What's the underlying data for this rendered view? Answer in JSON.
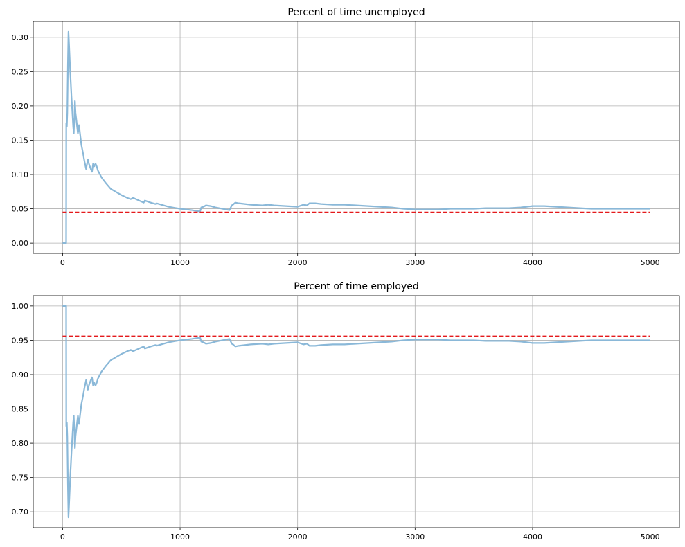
{
  "chart_data": [
    {
      "type": "line",
      "title": "Percent of time unemployed",
      "xlabel": "",
      "ylabel": "",
      "xlim": [
        -250,
        5250
      ],
      "ylim": [
        -0.015,
        0.323
      ],
      "xticks": [
        0,
        1000,
        2000,
        3000,
        4000,
        5000
      ],
      "xtick_labels": [
        "0",
        "1000",
        "2000",
        "3000",
        "4000",
        "5000"
      ],
      "yticks": [
        0.0,
        0.05,
        0.1,
        0.15,
        0.2,
        0.25,
        0.3
      ],
      "ytick_labels": [
        "0.00",
        "0.05",
        "0.10",
        "0.15",
        "0.20",
        "0.25",
        "0.30"
      ],
      "grid": true,
      "series": [
        {
          "color": "#8ab8d8",
          "style": "solid",
          "x": [
            0,
            30,
            31,
            35,
            36,
            40,
            45,
            50,
            55,
            65,
            75,
            90,
            95,
            105,
            110,
            120,
            130,
            140,
            150,
            160,
            175,
            185,
            200,
            215,
            225,
            240,
            250,
            260,
            270,
            280,
            290,
            300,
            330,
            370,
            410,
            460,
            500,
            550,
            580,
            600,
            650,
            690,
            700,
            750,
            790,
            800,
            900,
            1000,
            1100,
            1170,
            1180,
            1200,
            1220,
            1260,
            1300,
            1420,
            1440,
            1450,
            1470,
            1500,
            1600,
            1700,
            1750,
            1800,
            1900,
            2000,
            2050,
            2080,
            2100,
            2150,
            2200,
            2300,
            2400,
            2500,
            2600,
            2700,
            2800,
            2900,
            3000,
            3100,
            3200,
            3300,
            3400,
            3500,
            3600,
            3700,
            3800,
            3900,
            3950,
            4000,
            4100,
            4200,
            4300,
            4400,
            4500,
            4600,
            4700,
            4800,
            4900,
            5000
          ],
          "y": [
            0.0,
            0.0,
            0.175,
            0.17,
            0.17,
            0.19,
            0.26,
            0.308,
            0.29,
            0.25,
            0.215,
            0.17,
            0.16,
            0.207,
            0.19,
            0.175,
            0.16,
            0.172,
            0.157,
            0.143,
            0.13,
            0.12,
            0.108,
            0.122,
            0.115,
            0.108,
            0.104,
            0.116,
            0.112,
            0.116,
            0.112,
            0.106,
            0.096,
            0.087,
            0.079,
            0.074,
            0.07,
            0.066,
            0.064,
            0.066,
            0.062,
            0.059,
            0.062,
            0.059,
            0.057,
            0.058,
            0.053,
            0.05,
            0.048,
            0.046,
            0.052,
            0.053,
            0.055,
            0.054,
            0.052,
            0.048,
            0.055,
            0.056,
            0.059,
            0.058,
            0.056,
            0.055,
            0.056,
            0.055,
            0.054,
            0.053,
            0.056,
            0.055,
            0.058,
            0.058,
            0.057,
            0.056,
            0.056,
            0.055,
            0.054,
            0.053,
            0.052,
            0.05,
            0.049,
            0.049,
            0.049,
            0.05,
            0.05,
            0.05,
            0.051,
            0.051,
            0.051,
            0.052,
            0.053,
            0.054,
            0.054,
            0.053,
            0.052,
            0.051,
            0.05,
            0.05,
            0.05,
            0.05,
            0.05,
            0.05
          ]
        },
        {
          "color": "#e41a1c",
          "style": "dashed",
          "x": [
            0,
            5000
          ],
          "y": [
            0.045,
            0.045
          ]
        }
      ]
    },
    {
      "type": "line",
      "title": "Percent of time employed",
      "xlabel": "",
      "ylabel": "",
      "xlim": [
        -250,
        5250
      ],
      "ylim": [
        0.677,
        1.015
      ],
      "xticks": [
        0,
        1000,
        2000,
        3000,
        4000,
        5000
      ],
      "xtick_labels": [
        "0",
        "1000",
        "2000",
        "3000",
        "4000",
        "5000"
      ],
      "yticks": [
        0.7,
        0.75,
        0.8,
        0.85,
        0.9,
        0.95,
        1.0
      ],
      "ytick_labels": [
        "0.70",
        "0.75",
        "0.80",
        "0.85",
        "0.90",
        "0.95",
        "1.00"
      ],
      "grid": true,
      "series": [
        {
          "color": "#8ab8d8",
          "style": "solid",
          "x": [
            0,
            30,
            31,
            35,
            36,
            40,
            45,
            50,
            55,
            65,
            75,
            90,
            95,
            105,
            110,
            120,
            130,
            140,
            150,
            160,
            175,
            185,
            200,
            215,
            225,
            240,
            250,
            260,
            270,
            280,
            290,
            300,
            330,
            370,
            410,
            460,
            500,
            550,
            580,
            600,
            650,
            690,
            700,
            750,
            790,
            800,
            900,
            1000,
            1100,
            1170,
            1180,
            1200,
            1220,
            1260,
            1300,
            1420,
            1440,
            1450,
            1470,
            1500,
            1600,
            1700,
            1750,
            1800,
            1900,
            2000,
            2050,
            2080,
            2100,
            2150,
            2200,
            2300,
            2400,
            2500,
            2600,
            2700,
            2800,
            2900,
            3000,
            3100,
            3200,
            3300,
            3400,
            3500,
            3600,
            3700,
            3800,
            3900,
            3950,
            4000,
            4100,
            4200,
            4300,
            4400,
            4500,
            4600,
            4700,
            4800,
            4900,
            5000
          ],
          "y": [
            1.0,
            1.0,
            0.825,
            0.83,
            0.83,
            0.81,
            0.74,
            0.692,
            0.71,
            0.75,
            0.785,
            0.83,
            0.84,
            0.793,
            0.81,
            0.825,
            0.84,
            0.828,
            0.843,
            0.857,
            0.87,
            0.88,
            0.892,
            0.878,
            0.885,
            0.892,
            0.896,
            0.884,
            0.888,
            0.884,
            0.888,
            0.894,
            0.904,
            0.913,
            0.921,
            0.926,
            0.93,
            0.934,
            0.936,
            0.934,
            0.938,
            0.941,
            0.938,
            0.941,
            0.943,
            0.942,
            0.947,
            0.95,
            0.952,
            0.954,
            0.948,
            0.947,
            0.945,
            0.946,
            0.948,
            0.952,
            0.945,
            0.944,
            0.941,
            0.942,
            0.944,
            0.945,
            0.944,
            0.945,
            0.946,
            0.947,
            0.944,
            0.945,
            0.942,
            0.942,
            0.943,
            0.944,
            0.944,
            0.945,
            0.946,
            0.947,
            0.948,
            0.95,
            0.951,
            0.951,
            0.951,
            0.95,
            0.95,
            0.95,
            0.949,
            0.949,
            0.949,
            0.948,
            0.947,
            0.946,
            0.946,
            0.947,
            0.948,
            0.949,
            0.95,
            0.95,
            0.95,
            0.95,
            0.95,
            0.95
          ]
        },
        {
          "color": "#e41a1c",
          "style": "dashed",
          "x": [
            0,
            5000
          ],
          "y": [
            0.956,
            0.956
          ]
        }
      ]
    }
  ]
}
